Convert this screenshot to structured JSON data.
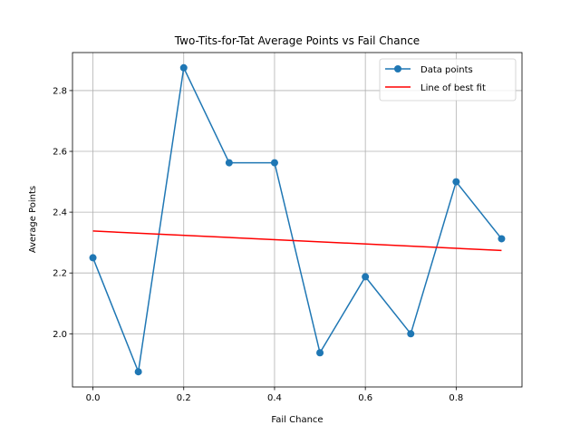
{
  "chart_data": {
    "type": "line",
    "title": "Two-Tits-for-Tat Average Points vs Fail Chance",
    "xlabel": "Fail Chance",
    "ylabel": "Average Points",
    "xlim": [
      -0.045,
      0.945
    ],
    "ylim": [
      1.825,
      2.925
    ],
    "xticks": [
      0.0,
      0.2,
      0.4,
      0.6,
      0.8
    ],
    "xtick_labels": [
      "0.0",
      "0.2",
      "0.4",
      "0.6",
      "0.8"
    ],
    "yticks": [
      2.0,
      2.2,
      2.4,
      2.6,
      2.8
    ],
    "ytick_labels": [
      "2.0",
      "2.2",
      "2.4",
      "2.6",
      "2.8"
    ],
    "grid": true,
    "legend_position": "top-right",
    "series": [
      {
        "name": "Data points",
        "color": "#1f77b4",
        "marker": "circle",
        "x": [
          0.0,
          0.1,
          0.2,
          0.3,
          0.4,
          0.5,
          0.6,
          0.7,
          0.8,
          0.9
        ],
        "y": [
          2.25,
          1.875,
          2.875,
          2.5625,
          2.5625,
          1.9375,
          2.1875,
          2.0,
          2.5,
          2.3125
        ]
      },
      {
        "name": "Line of best fit",
        "color": "#ff0000",
        "marker": "none",
        "x": [
          0.0,
          0.9
        ],
        "y": [
          2.338,
          2.274
        ]
      }
    ]
  }
}
